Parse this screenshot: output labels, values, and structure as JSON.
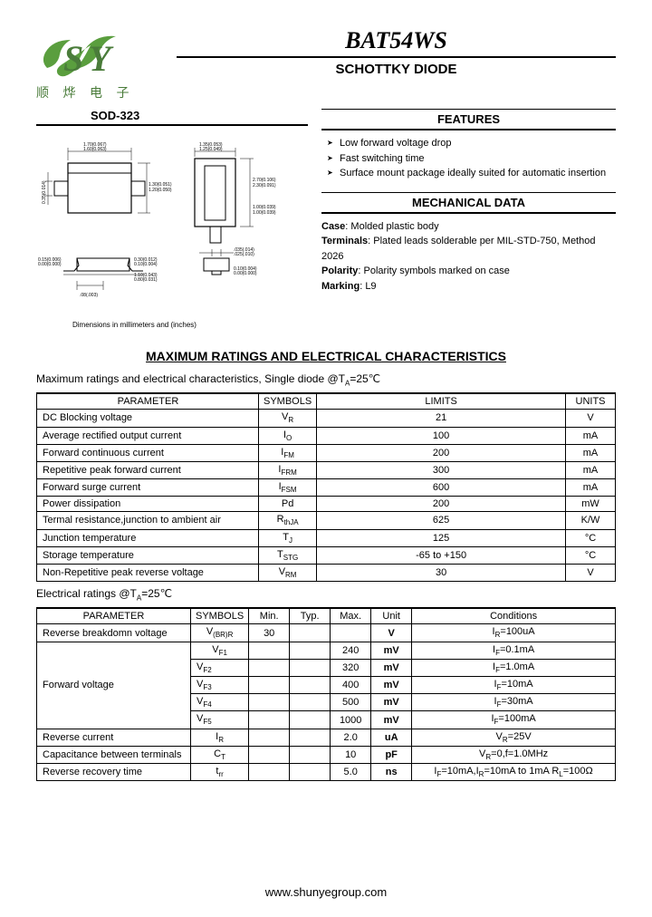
{
  "logo_cn": "顺 烨 电 子",
  "part_number": "BAT54WS",
  "subtitle": "SCHOTTKY DIODE",
  "package_label": "SOD-323",
  "package_caption": "Dimensions in millimeters and (inches)",
  "features_head": "FEATURES",
  "features": [
    "Low forward voltage drop",
    "Fast switching time",
    "Surface mount package ideally suited for automatic insertion"
  ],
  "mech_head": "MECHANICAL DATA",
  "mech": {
    "case": "Molded plastic body",
    "terminals": "Plated leads solderable per MIL-STD-750, Method 2026",
    "polarity": "Polarity symbols marked on case",
    "marking": "L9"
  },
  "main_head": "MAXIMUM RATINGS AND ELECTRICAL CHARACTERISTICS",
  "t1_caption": "Maximum ratings and electrical characteristics, Single diode @TA=25℃",
  "t1_headers": [
    "PARAMETER",
    "SYMBOLS",
    "LIMITS",
    "UNITS"
  ],
  "t1_rows": [
    {
      "p": "DC Blocking voltage",
      "s": "V<R>",
      "l": "21",
      "u": "V"
    },
    {
      "p": "Average rectified output current",
      "s": "I<O>",
      "l": "100",
      "u": "mA"
    },
    {
      "p": "Forward continuous current",
      "s": "I<FM>",
      "l": "200",
      "u": "mA"
    },
    {
      "p": "Repetitive peak forward current",
      "s": "I<FRM>",
      "l": "300",
      "u": "mA"
    },
    {
      "p": "Forward surge current",
      "s": "I<FSM>",
      "l": "600",
      "u": "mA"
    },
    {
      "p": "Power dissipation",
      "s": "Pd",
      "l": "200",
      "u": "mW"
    },
    {
      "p": "Termal resistance,junction to ambient air",
      "s": "R<thJA>",
      "l": "625",
      "u": "K/W"
    },
    {
      "p": "Junction temperature",
      "s": "T<J>",
      "l": "125",
      "u": "°C"
    },
    {
      "p": "Storage temperature",
      "s": "T<STG>",
      "l": "-65 to +150",
      "u": "°C"
    },
    {
      "p": "Non-Repetitive peak reverse voltage",
      "s": "V<RM>",
      "l": "30",
      "u": "V"
    }
  ],
  "t2_caption": "Electrical ratings @TA=25℃",
  "t2_headers": [
    "PARAMETER",
    "SYMBOLS",
    "Min.",
    "Typ.",
    "Max.",
    "Unit",
    "Conditions"
  ],
  "t2_rows": [
    {
      "p": "Reverse breakdomn voltage",
      "s": "V<(BR)R>",
      "min": "30",
      "typ": "",
      "max": "",
      "u": "V",
      "c": "I<R>=100uA",
      "rs": 1
    },
    {
      "p": "Forward voltage",
      "s": "V<F1>",
      "min": "",
      "typ": "",
      "max": "240",
      "u": "mV",
      "c": "I<F>=0.1mA",
      "rs": 5
    },
    {
      "p": "",
      "s": "V<F2>",
      "min": "",
      "typ": "",
      "max": "320",
      "u": "mV",
      "c": "I<F>=1.0mA"
    },
    {
      "p": "",
      "s": "V<F3>",
      "min": "",
      "typ": "",
      "max": "400",
      "u": "mV",
      "c": "I<F>=10mA"
    },
    {
      "p": "",
      "s": "V<F4>",
      "min": "",
      "typ": "",
      "max": "500",
      "u": "mV",
      "c": "I<F>=30mA"
    },
    {
      "p": "",
      "s": "V<F5>",
      "min": "",
      "typ": "",
      "max": "1000",
      "u": "mV",
      "c": "I<F>=100mA"
    },
    {
      "p": "Reverse current",
      "s": "I<R>",
      "min": "",
      "typ": "",
      "max": "2.0",
      "u": "uA",
      "c": "V<R>=25V",
      "rs": 1
    },
    {
      "p": "Capacitance between terminals",
      "s": "C<T>",
      "min": "",
      "typ": "",
      "max": "10",
      "u": "pF",
      "c": "V<R>=0,f=1.0MHz",
      "rs": 1
    },
    {
      "p": "Reverse recovery time",
      "s": "t<rr>",
      "min": "",
      "typ": "",
      "max": "5.0",
      "u": "ns",
      "c": "I<F>=10mA,I<R>=10mA to 1mA R<L>=100Ω",
      "rs": 1
    }
  ],
  "footer": "www.shunyegroup.com"
}
